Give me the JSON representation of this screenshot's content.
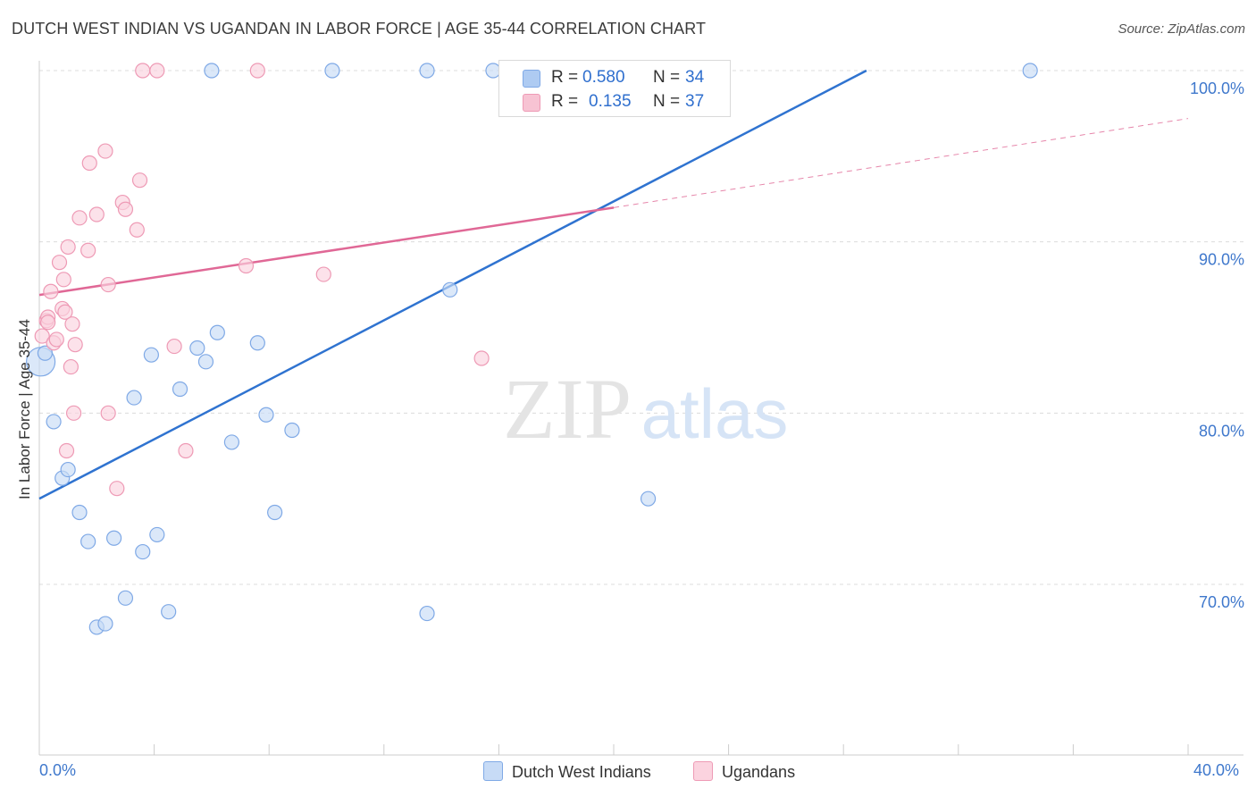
{
  "header": {
    "title": "DUTCH WEST INDIAN VS UGANDAN IN LABOR FORCE | AGE 35-44 CORRELATION CHART",
    "source": "Source: ZipAtlas.com"
  },
  "watermark": {
    "zip": "ZIP",
    "atlas": "atlas"
  },
  "legend": {
    "rows": [
      {
        "r_label": "R =",
        "r_value": "0.580",
        "n_label": "N =",
        "n_value": "34",
        "color": "#aecbf2",
        "border": "#7fa9e6"
      },
      {
        "r_label": "R =",
        "r_value": "0.135",
        "n_label": "N =",
        "n_value": "37",
        "color": "#f7c3d3",
        "border": "#ee9ab5"
      }
    ]
  },
  "bottom_legend": {
    "items": [
      {
        "label": "Dutch West Indians",
        "color": "#c7dbf6",
        "border": "#7fa9e6"
      },
      {
        "label": "Ugandans",
        "color": "#fbd3df",
        "border": "#ee9ab5"
      }
    ]
  },
  "chart_data": {
    "type": "scatter",
    "title": "DUTCH WEST INDIAN VS UGANDAN IN LABOR FORCE | AGE 35-44 CORRELATION CHART",
    "xlabel": "",
    "ylabel": "In Labor Force | Age 35-44",
    "x_ticks": [
      "0.0%",
      "40.0%"
    ],
    "y_ticks": [
      "70.0%",
      "80.0%",
      "90.0%",
      "100.0%"
    ],
    "xlim": [
      0,
      40
    ],
    "ylim": [
      60,
      103
    ],
    "grid": true,
    "legend_position": "top-center",
    "series": [
      {
        "name": "Dutch West Indians",
        "color": "#2f73d0",
        "fill": "#c7dbf6",
        "trend": {
          "x0": 0,
          "y0": 75.0,
          "x1": 28.8,
          "y1": 100.0,
          "dashed_after": null
        },
        "points": [
          [
            0.05,
            83.0
          ],
          [
            0.5,
            79.5
          ],
          [
            0.8,
            76.2
          ],
          [
            1.0,
            76.7
          ],
          [
            1.4,
            74.2
          ],
          [
            1.7,
            72.5
          ],
          [
            2.0,
            67.5
          ],
          [
            2.3,
            67.7
          ],
          [
            2.6,
            72.7
          ],
          [
            3.0,
            69.2
          ],
          [
            3.3,
            80.9
          ],
          [
            3.6,
            71.9
          ],
          [
            3.9,
            83.4
          ],
          [
            4.1,
            72.9
          ],
          [
            4.5,
            68.4
          ],
          [
            4.9,
            81.4
          ],
          [
            5.5,
            83.8
          ],
          [
            5.8,
            83.0
          ],
          [
            6.2,
            84.7
          ],
          [
            6.7,
            78.3
          ],
          [
            7.6,
            84.1
          ],
          [
            7.9,
            79.9
          ],
          [
            8.2,
            74.2
          ],
          [
            8.8,
            79.0
          ],
          [
            6.0,
            100.0
          ],
          [
            10.2,
            100.0
          ],
          [
            13.5,
            68.3
          ],
          [
            14.3,
            87.2
          ],
          [
            13.5,
            100.0
          ],
          [
            15.8,
            100.0
          ],
          [
            16.5,
            100.0
          ],
          [
            21.2,
            75.0
          ],
          [
            34.5,
            100.0
          ],
          [
            0.2,
            83.5
          ]
        ]
      },
      {
        "name": "Ugandans",
        "color": "#e06896",
        "fill": "#fbd3df",
        "trend": {
          "x0": 0,
          "y0": 86.9,
          "x1": 20.0,
          "y1": 92.0,
          "dash_to_x": 40,
          "dash_to_y": 97.2
        },
        "points": [
          [
            0.1,
            84.5
          ],
          [
            0.25,
            85.4
          ],
          [
            0.3,
            85.6
          ],
          [
            0.4,
            87.1
          ],
          [
            0.5,
            84.1
          ],
          [
            0.6,
            84.3
          ],
          [
            0.7,
            88.8
          ],
          [
            0.8,
            86.1
          ],
          [
            0.85,
            87.8
          ],
          [
            0.9,
            85.9
          ],
          [
            0.95,
            77.8
          ],
          [
            1.0,
            89.7
          ],
          [
            1.1,
            82.7
          ],
          [
            1.15,
            85.2
          ],
          [
            1.2,
            80.0
          ],
          [
            1.25,
            84.0
          ],
          [
            1.4,
            91.4
          ],
          [
            1.7,
            89.5
          ],
          [
            1.75,
            94.6
          ],
          [
            2.0,
            91.6
          ],
          [
            2.3,
            95.3
          ],
          [
            2.4,
            87.5
          ],
          [
            2.4,
            80.0
          ],
          [
            2.7,
            75.6
          ],
          [
            2.9,
            92.3
          ],
          [
            3.0,
            91.9
          ],
          [
            3.4,
            90.7
          ],
          [
            3.5,
            93.6
          ],
          [
            3.6,
            100.0
          ],
          [
            4.1,
            100.0
          ],
          [
            4.7,
            83.9
          ],
          [
            5.1,
            77.8
          ],
          [
            7.2,
            88.6
          ],
          [
            7.6,
            100.0
          ],
          [
            9.9,
            88.1
          ],
          [
            15.4,
            83.2
          ],
          [
            0.3,
            85.3
          ]
        ]
      }
    ]
  }
}
